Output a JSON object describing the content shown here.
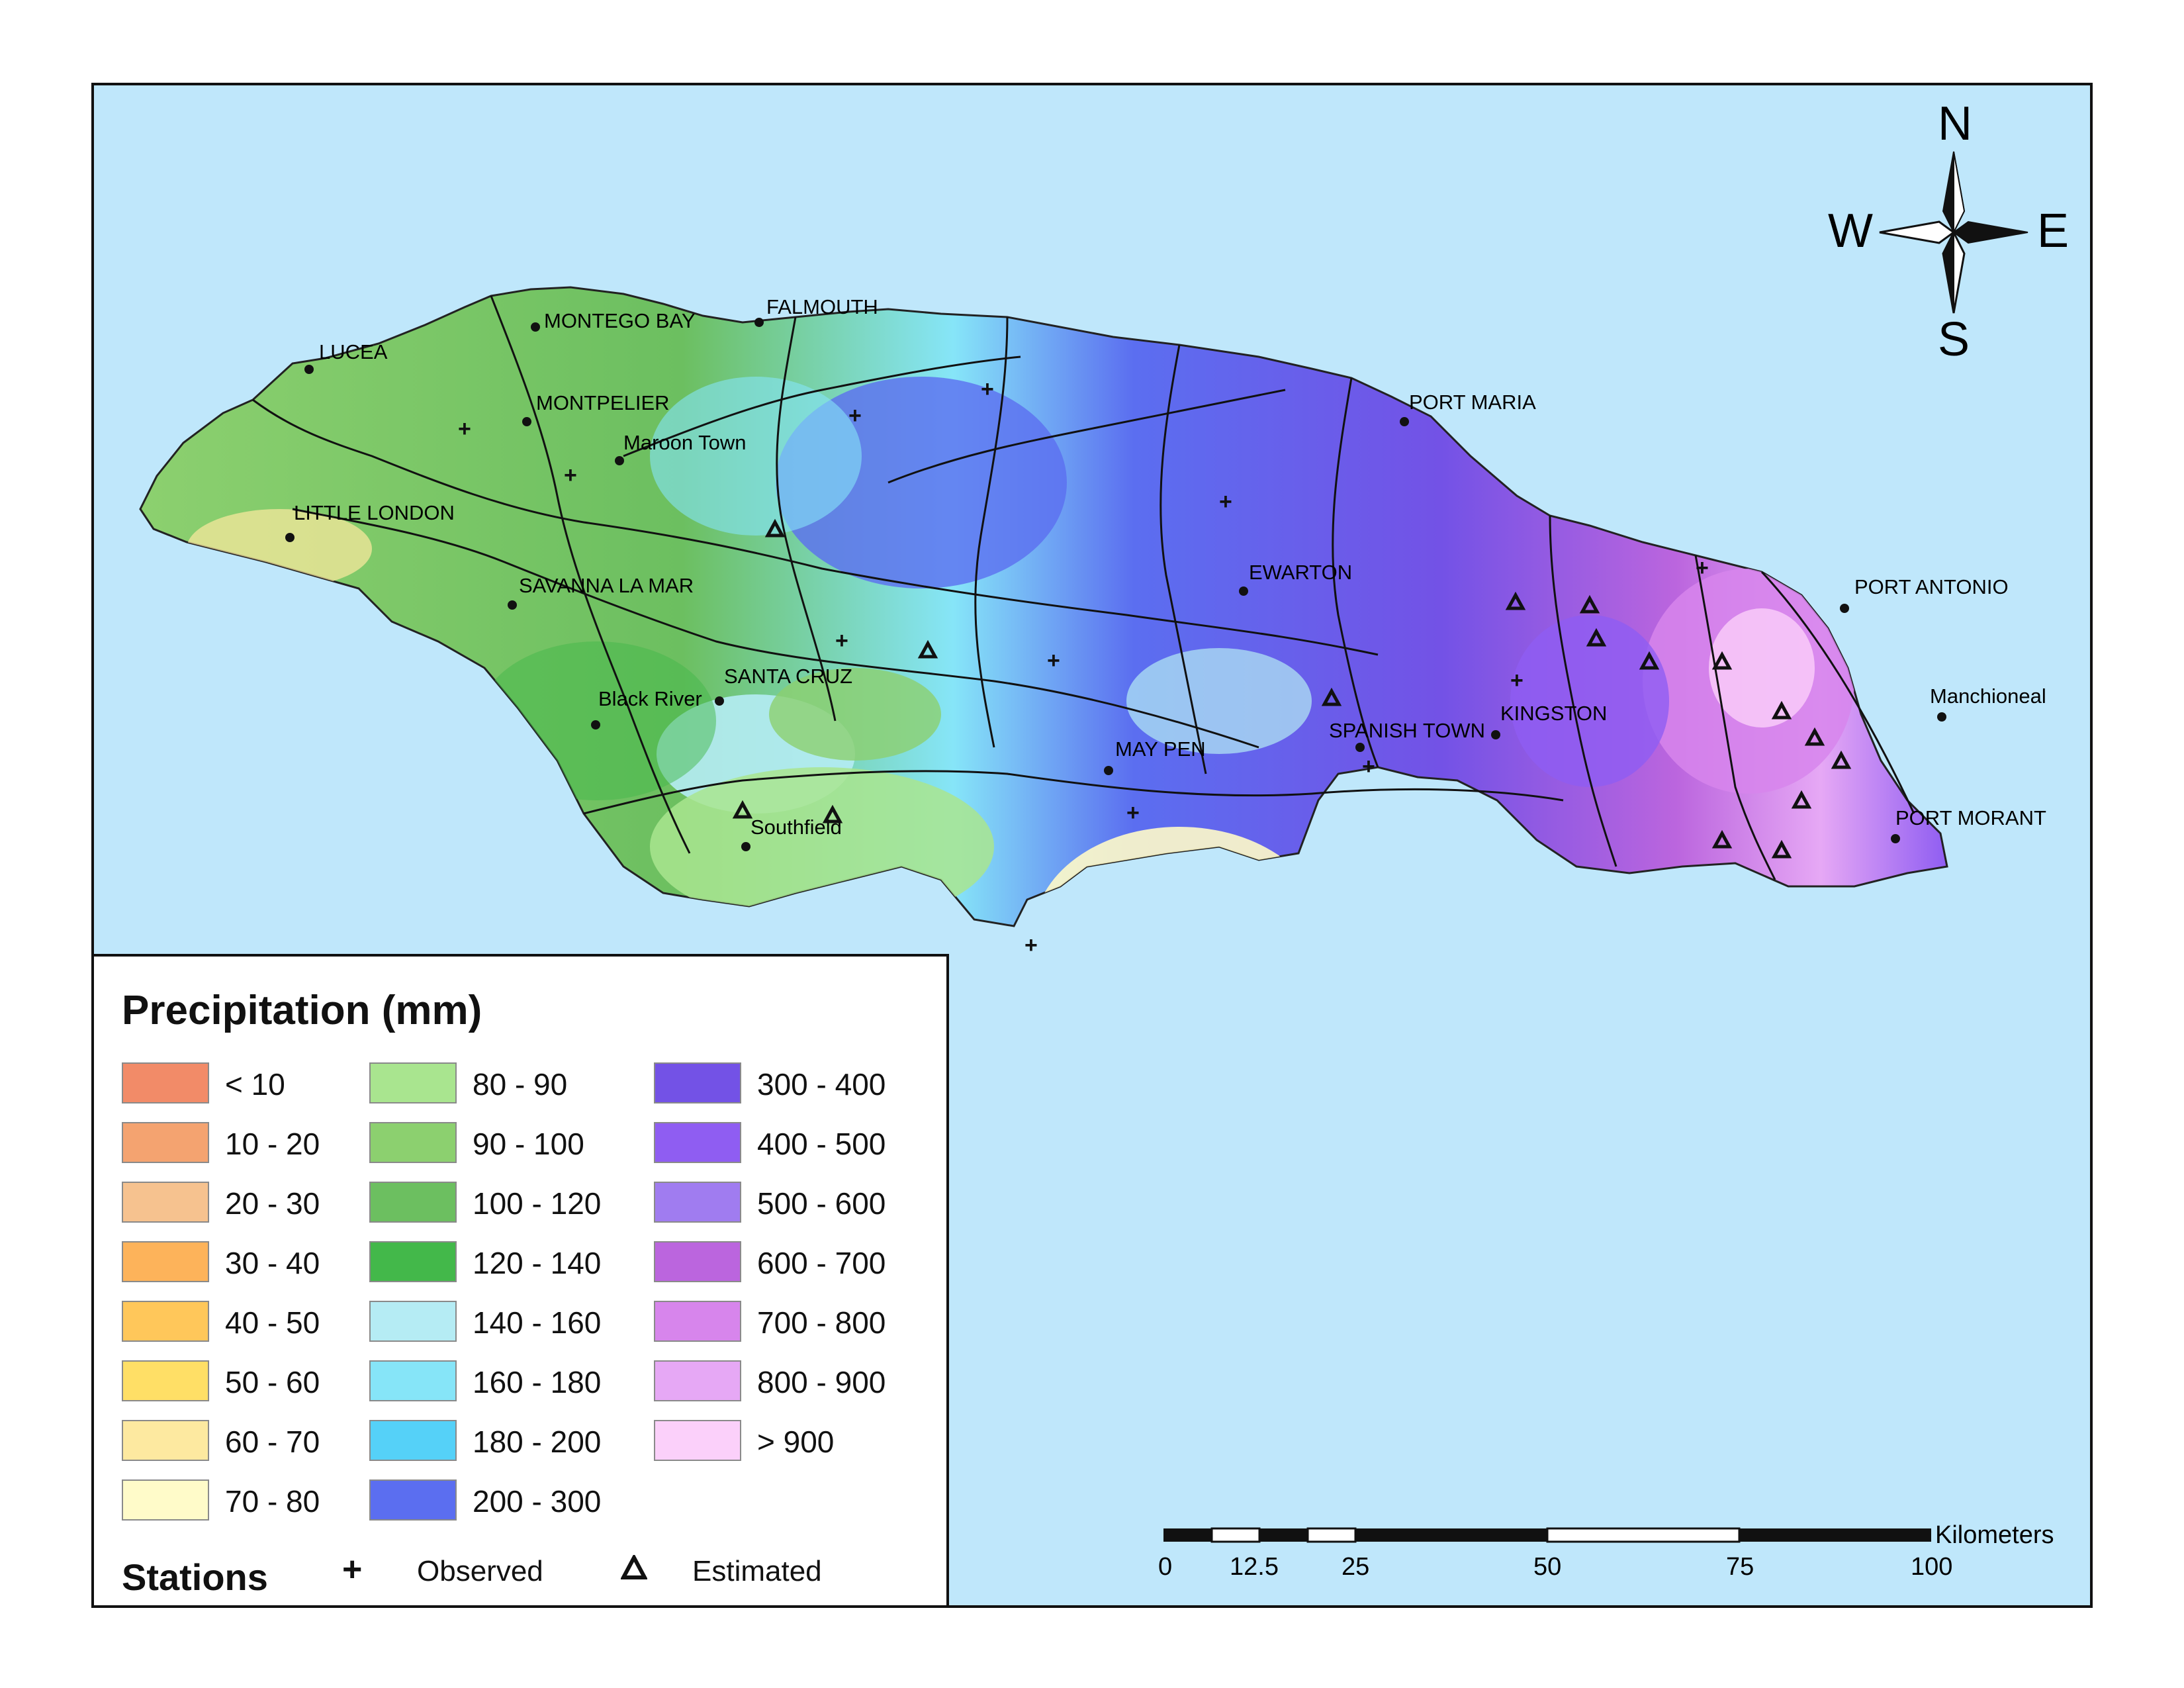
{
  "places": {
    "lucea": "LUCEA",
    "montego_bay": "MONTEGO BAY",
    "falmouth": "FALMOUTH",
    "montpelier": "MONTPELIER",
    "maroon_town": "Maroon Town",
    "little_london": "LITTLE LONDON",
    "savanna_la_mar": "SAVANNA LA MAR",
    "black_river": "Black River",
    "santa_cruz": "SANTA CRUZ",
    "southfield": "Southfield",
    "may_pen": "MAY PEN",
    "ewarton": "EWARTON",
    "port_maria": "PORT MARIA",
    "spanish_town": "SPANISH TOWN",
    "kingston": "KINGSTON",
    "port_antonio": "PORT ANTONIO",
    "manchioneal": "Manchioneal",
    "port_morant": "PORT MORANT"
  },
  "compass": {
    "north": "N",
    "south": "S",
    "east": "E",
    "west": "W"
  },
  "scale_bar": {
    "unit": "Kilometers",
    "ticks": [
      "0",
      "12.5",
      "25",
      "50",
      "75",
      "100"
    ]
  },
  "legend": {
    "title": "Precipitation (mm)",
    "classes": [
      {
        "label": "< 10",
        "color": "#f28b68"
      },
      {
        "label": "10 - 20",
        "color": "#f4a370"
      },
      {
        "label": "20 - 30",
        "color": "#f6c28f"
      },
      {
        "label": "30 - 40",
        "color": "#fdb35a"
      },
      {
        "label": "40 - 50",
        "color": "#ffc75a"
      },
      {
        "label": "50 - 60",
        "color": "#ffdf66"
      },
      {
        "label": "60 - 70",
        "color": "#fde9a0"
      },
      {
        "label": "70 - 80",
        "color": "#fffbc9"
      },
      {
        "label": "80 - 90",
        "color": "#a9e58f"
      },
      {
        "label": "90 - 100",
        "color": "#8cd06f"
      },
      {
        "label": "100 - 120",
        "color": "#6cbf60"
      },
      {
        "label": "120 - 140",
        "color": "#43b84a"
      },
      {
        "label": "140 - 160",
        "color": "#b5ecf4"
      },
      {
        "label": "160 - 180",
        "color": "#86e5f8"
      },
      {
        "label": "180 - 200",
        "color": "#55d1f8"
      },
      {
        "label": "200 - 300",
        "color": "#5b6ef0"
      },
      {
        "label": "300 - 400",
        "color": "#7352e6"
      },
      {
        "label": "400 - 500",
        "color": "#8f5df2"
      },
      {
        "label": "500 - 600",
        "color": "#a07cf0"
      },
      {
        "label": "600 - 700",
        "color": "#bb65de"
      },
      {
        "label": "700 - 800",
        "color": "#d785ec"
      },
      {
        "label": "800 - 900",
        "color": "#e6a8f5"
      },
      {
        "label": "> 900",
        "color": "#fbd0fa"
      }
    ],
    "stations_title": "Stations",
    "observed_symbol": "+",
    "observed_label": "Observed",
    "estimated_label": "Estimated"
  },
  "colors": {
    "sea": "#bfe7fb",
    "frame": "#111111"
  }
}
